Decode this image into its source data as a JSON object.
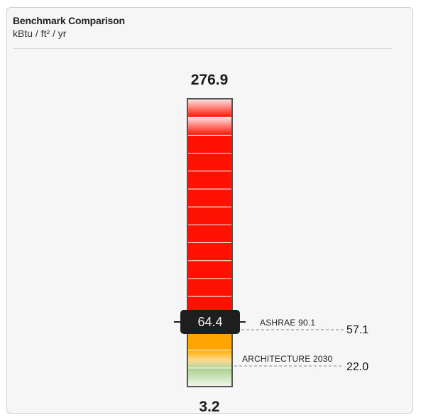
{
  "panel": {
    "title": "Benchmark Comparison",
    "units": "kBtu / ft² / yr"
  },
  "scale": {
    "max": 276.9,
    "min": 3.2,
    "max_label": "276.9",
    "min_label": "3.2"
  },
  "current": {
    "value": 64.4,
    "label": "64.4"
  },
  "benchmarks": [
    {
      "name": "ASHRAE 90.1",
      "value": 57.1,
      "value_label": "57.1"
    },
    {
      "name": "ARCHITECTURE 2030",
      "value": 22.0,
      "value_label": "22.0"
    }
  ],
  "colors": {
    "high": "#ff1100",
    "high_light": "#ffd6d6",
    "mid": "#ffa400",
    "mid_light": "#ffd680",
    "low": "#a9cf8e",
    "low_light": "#eef5e6",
    "marker": "#1e1e1e",
    "frame": "#555555"
  }
}
